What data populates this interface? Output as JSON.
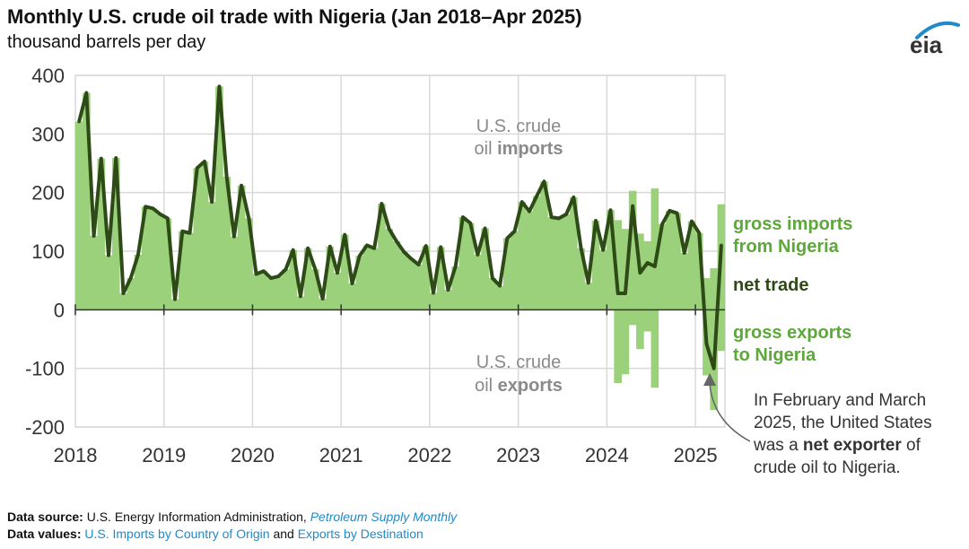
{
  "title": "Monthly U.S. crude oil trade with Nigeria (Jan 2018–Apr 2025)",
  "subtitle": "thousand barrels per day",
  "logo_text": "eia",
  "colors": {
    "imports": "#9bd17a",
    "net": "#2d4a17",
    "label_green": "#5da83a",
    "grid": "#d9d9d9",
    "annotation": "#6b6b6b",
    "link": "#1f8ac9"
  },
  "chart_data": {
    "type": "bar+line",
    "title": "Monthly U.S. crude oil trade with Nigeria (Jan 2018–Apr 2025)",
    "ylabel": "thousand barrels per day",
    "ylim": [
      -200,
      400
    ],
    "yticks": [
      "400",
      "300",
      "200",
      "100",
      "0",
      "-100",
      "-200"
    ],
    "ytick_values": [
      400,
      300,
      200,
      100,
      0,
      -100,
      -200
    ],
    "xticks": [
      "2018",
      "2019",
      "2020",
      "2021",
      "2022",
      "2023",
      "2024",
      "2025"
    ],
    "start": "2018-01",
    "months": 88,
    "grid": true,
    "series": [
      {
        "name": "gross imports from Nigeria",
        "type": "bar",
        "values": [
          321,
          370,
          126,
          258,
          93,
          259,
          28,
          54,
          94,
          176,
          173,
          163,
          156,
          18,
          134,
          131,
          242,
          253,
          184,
          381,
          227,
          125,
          212,
          156,
          61,
          66,
          54,
          57,
          69,
          102,
          23,
          105,
          69,
          19,
          108,
          63,
          128,
          45,
          92,
          110,
          105,
          181,
          138,
          117,
          99,
          87,
          77,
          109,
          29,
          107,
          34,
          74,
          158,
          148,
          94,
          139,
          54,
          41,
          122,
          134,
          184,
          168,
          194,
          219,
          158,
          156,
          163,
          192,
          105,
          46,
          152,
          102,
          170,
          153,
          138,
          203,
          130,
          117,
          207,
          146,
          169,
          165,
          97,
          151,
          131,
          54,
          71,
          180
        ]
      },
      {
        "name": "gross exports to Nigeria",
        "type": "bar",
        "values": [
          0,
          0,
          0,
          0,
          0,
          0,
          0,
          0,
          0,
          0,
          0,
          0,
          0,
          0,
          0,
          0,
          0,
          0,
          0,
          0,
          0,
          0,
          0,
          0,
          0,
          0,
          0,
          0,
          0,
          0,
          0,
          0,
          0,
          0,
          0,
          0,
          0,
          0,
          0,
          0,
          0,
          0,
          0,
          0,
          0,
          0,
          0,
          0,
          0,
          0,
          0,
          0,
          0,
          0,
          0,
          0,
          0,
          0,
          0,
          0,
          0,
          0,
          0,
          0,
          0,
          0,
          0,
          0,
          0,
          0,
          0,
          0,
          0,
          -125,
          -110,
          -26,
          -67,
          -37,
          -133,
          0,
          0,
          0,
          0,
          0,
          0,
          -112,
          -171,
          -70
        ]
      },
      {
        "name": "net trade",
        "type": "line",
        "values": [
          321,
          370,
          126,
          258,
          93,
          259,
          28,
          54,
          94,
          176,
          173,
          163,
          156,
          18,
          134,
          131,
          242,
          253,
          184,
          381,
          227,
          125,
          212,
          156,
          61,
          66,
          54,
          57,
          69,
          102,
          23,
          105,
          69,
          19,
          108,
          63,
          128,
          45,
          92,
          110,
          105,
          181,
          138,
          117,
          99,
          87,
          77,
          109,
          29,
          107,
          34,
          74,
          158,
          148,
          94,
          139,
          54,
          41,
          122,
          134,
          184,
          168,
          194,
          219,
          158,
          156,
          163,
          192,
          105,
          46,
          152,
          102,
          170,
          28,
          28,
          177,
          63,
          80,
          74,
          146,
          169,
          165,
          97,
          151,
          131,
          -58,
          -100,
          110
        ]
      }
    ],
    "annotations": {
      "imports_label": [
        "U.S. crude",
        "oil ",
        "imports"
      ],
      "exports_label": [
        "U.S. crude",
        "oil ",
        "exports"
      ],
      "legend_imports": [
        "gross imports",
        "from Nigeria"
      ],
      "legend_net": "net trade",
      "legend_exports": [
        "gross exports",
        "to Nigeria"
      ],
      "callout": [
        "In February and March",
        "2025, the United States",
        "was a ",
        "net exporter",
        " of",
        "crude oil to Nigeria."
      ]
    }
  },
  "footer": {
    "source_label": "Data source:",
    "source_text": " U.S. Energy Information Administration, ",
    "source_link": "Petroleum Supply Monthly",
    "values_label": "Data values:",
    "values_link1": "U.S. Imports by Country of Origin",
    "values_and": " and ",
    "values_link2": "Exports by Destination"
  }
}
